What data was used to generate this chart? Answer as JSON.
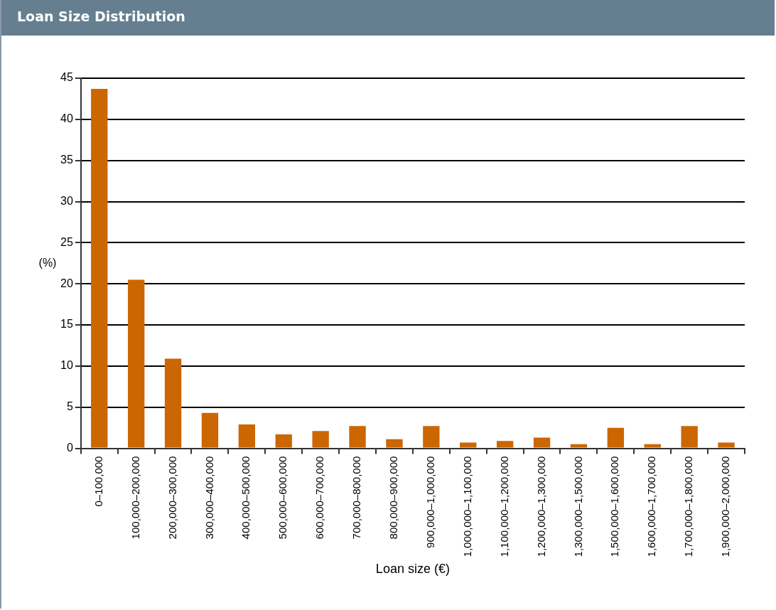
{
  "chart_data": {
    "type": "bar",
    "title": "Loan Size Distribution",
    "xlabel": "Loan size (€)",
    "ylabel": "(%)",
    "categories": [
      "0–100,000",
      "100,000–200,000",
      "200,000–300,000",
      "300,000–400,000",
      "400,000–500,000",
      "500,000–600,000",
      "600,000–700,000",
      "700,000–800,000",
      "800,000–900,000",
      "900,000–1,000,000",
      "1,000,000–1,100,000",
      "1,100,000–1,200,000",
      "1,200,000–1,300,000",
      "1,300,000–1,500,000",
      "1,500,000–1,600,000",
      "1,600,000–1,700,000",
      "1,700,000–1,800,000",
      "1,900,000–2,000,000"
    ],
    "values": [
      43.7,
      20.5,
      10.9,
      4.3,
      2.9,
      1.7,
      2.1,
      2.7,
      1.1,
      2.7,
      0.7,
      0.9,
      1.3,
      0.5,
      2.5,
      0.5,
      2.7,
      0.7
    ],
    "color": "#cc6600",
    "ylim": [
      0,
      45
    ],
    "yticks": [
      0,
      5,
      10,
      15,
      20,
      25,
      30,
      35,
      40,
      45
    ],
    "grid": "y",
    "legend": false
  }
}
